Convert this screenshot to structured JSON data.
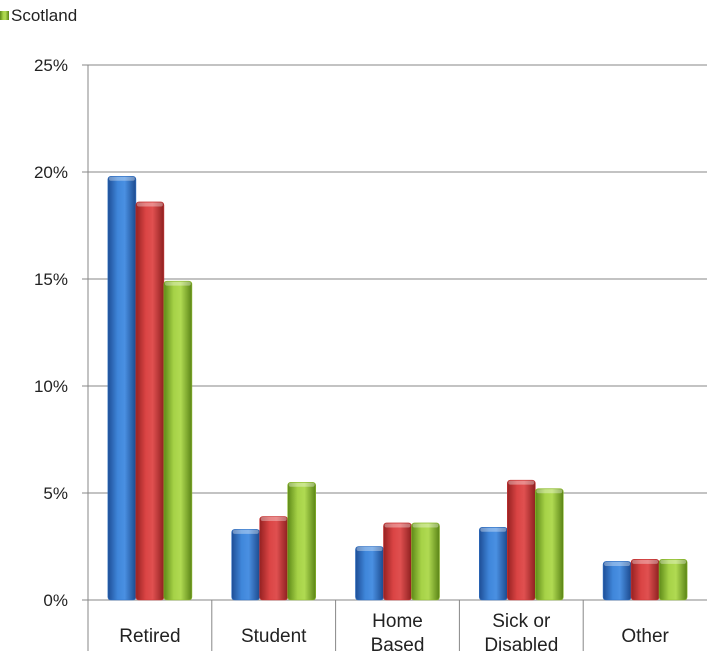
{
  "chart_data": {
    "type": "bar",
    "categories": [
      [
        "Retired"
      ],
      [
        "Student"
      ],
      [
        "Home",
        "Based"
      ],
      [
        "Sick or",
        "Disabled"
      ],
      [
        "Other"
      ]
    ],
    "series": [
      {
        "values": [
          19.8,
          3.3,
          2.5,
          3.4,
          1.8
        ],
        "color": "#2F6FC2"
      },
      {
        "values": [
          18.6,
          3.9,
          3.6,
          5.6,
          1.9
        ],
        "color": "#C93434"
      },
      {
        "name": "Scotland",
        "values": [
          14.9,
          5.5,
          3.6,
          5.2,
          1.9
        ],
        "color": "#8DBA2E"
      }
    ],
    "ylim": [
      0,
      25
    ],
    "yticks": [
      "0%",
      "5%",
      "10%",
      "15%",
      "20%",
      "25%"
    ],
    "ytick_values": [
      0,
      5,
      10,
      15,
      20,
      25
    ],
    "grid": true,
    "legend_position": "top-left",
    "legend_entries": [
      "Scotland"
    ]
  }
}
